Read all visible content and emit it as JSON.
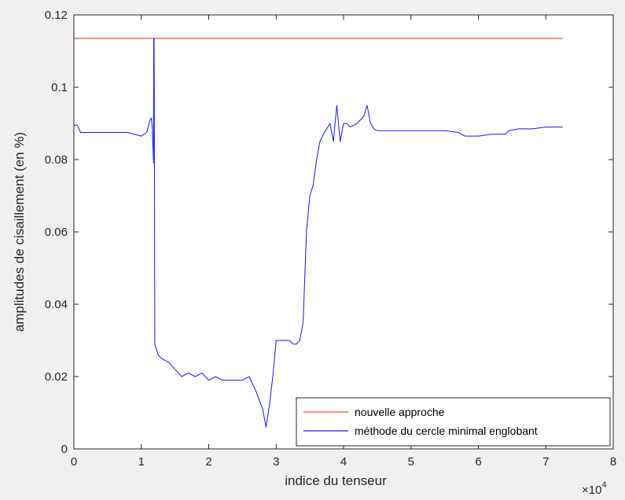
{
  "chart_data": {
    "type": "line",
    "title": "",
    "xlabel": "indice du tenseur",
    "ylabel": "amplitudes de cisaillement (en %)",
    "x_multiplier_text": "×10",
    "x_multiplier_exponent": "4",
    "xlim": [
      0,
      80000
    ],
    "ylim": [
      0,
      0.12
    ],
    "xticks": [
      0,
      10000,
      20000,
      30000,
      40000,
      50000,
      60000,
      70000,
      80000
    ],
    "xtick_labels": [
      "0",
      "1",
      "2",
      "3",
      "4",
      "5",
      "6",
      "7",
      "8"
    ],
    "yticks": [
      0,
      0.02,
      0.04,
      0.06,
      0.08,
      0.1,
      0.12
    ],
    "ytick_labels": [
      "0",
      "0.02",
      "0.04",
      "0.06",
      "0.08",
      "0.1",
      "0.12"
    ],
    "grid": false,
    "legend_position": "bottom-right",
    "series": [
      {
        "name": "nouvelle approche",
        "color": "#e8504a",
        "x": [
          0,
          72500
        ],
        "y": [
          0.1135,
          0.1135
        ]
      },
      {
        "name": "méthode du cercle minimal englobant",
        "color": "#1a1aff",
        "x": [
          0,
          500,
          1000,
          2000,
          5000,
          8000,
          10000,
          10800,
          11300,
          11500,
          11600,
          11700,
          11800,
          11850,
          11900,
          11950,
          12000,
          12500,
          13000,
          14000,
          15000,
          16000,
          17000,
          18000,
          19000,
          20000,
          21000,
          22000,
          23000,
          24000,
          25000,
          26000,
          27000,
          28000,
          28500,
          29000,
          29500,
          30000,
          31000,
          32000,
          32500,
          33000,
          33500,
          34000,
          34500,
          35000,
          35500,
          36000,
          36500,
          37000,
          38000,
          38500,
          39000,
          39500,
          40000,
          40500,
          41000,
          42000,
          43000,
          43500,
          44000,
          44500,
          45000,
          50000,
          55000,
          57000,
          58000,
          60000,
          62000,
          64000,
          64500,
          66000,
          68000,
          70000,
          72500
        ],
        "y": [
          0.0895,
          0.0895,
          0.0875,
          0.0875,
          0.0875,
          0.0875,
          0.0865,
          0.0875,
          0.091,
          0.0915,
          0.089,
          0.085,
          0.079,
          0.1135,
          0.1135,
          0.079,
          0.029,
          0.026,
          0.025,
          0.024,
          0.022,
          0.02,
          0.021,
          0.02,
          0.021,
          0.019,
          0.02,
          0.019,
          0.019,
          0.019,
          0.019,
          0.02,
          0.016,
          0.011,
          0.006,
          0.012,
          0.02,
          0.03,
          0.03,
          0.03,
          0.029,
          0.029,
          0.03,
          0.035,
          0.06,
          0.07,
          0.073,
          0.08,
          0.085,
          0.087,
          0.09,
          0.085,
          0.095,
          0.085,
          0.09,
          0.09,
          0.089,
          0.09,
          0.092,
          0.095,
          0.09,
          0.0885,
          0.088,
          0.088,
          0.088,
          0.0875,
          0.0865,
          0.0865,
          0.087,
          0.087,
          0.088,
          0.0885,
          0.0885,
          0.089,
          0.089
        ]
      }
    ]
  }
}
